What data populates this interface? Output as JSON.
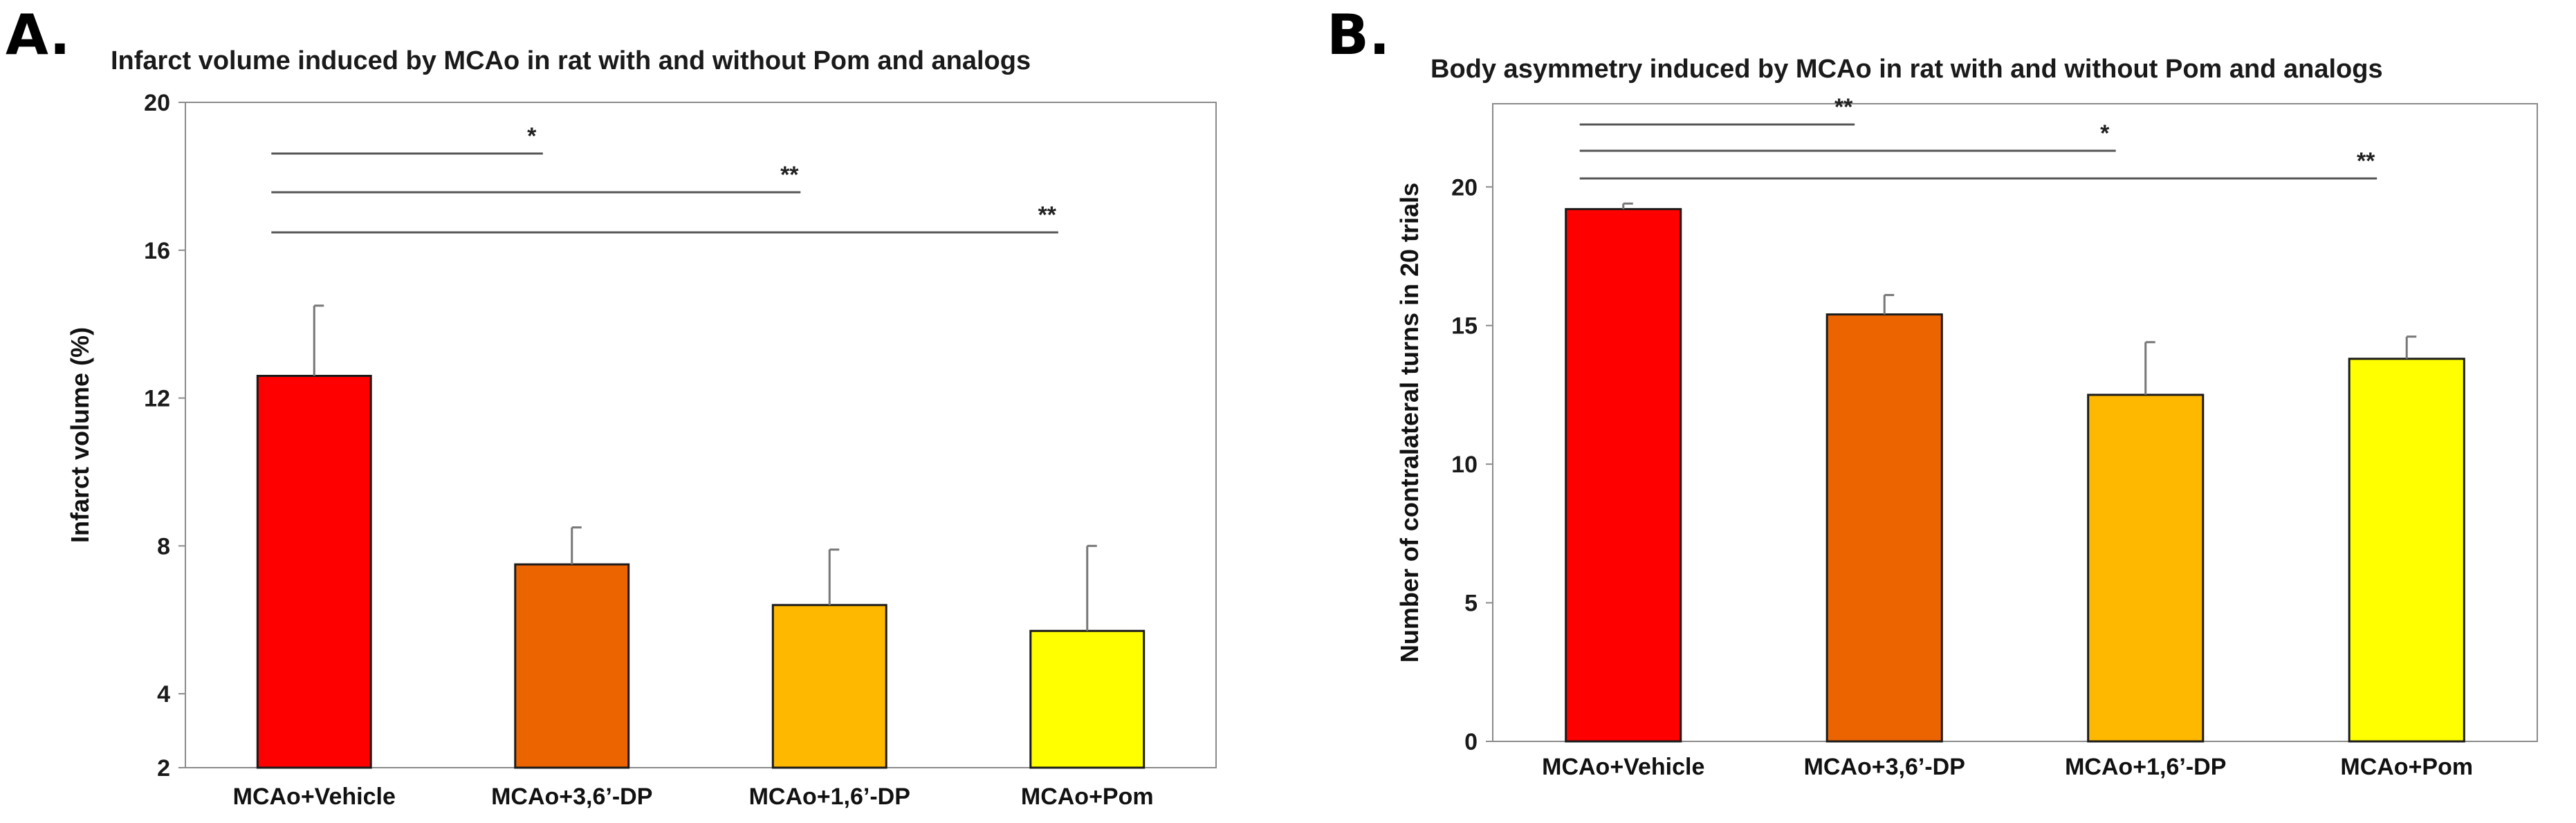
{
  "chart_data": [
    {
      "panel_label": "A.",
      "type": "bar",
      "title": "Infarct volume induced by MCAo in rat with and without Pom and analogs",
      "xlabel": "",
      "ylabel": "Infarct volume (%)",
      "ylim": [
        2,
        20
      ],
      "yticks": [
        2,
        4,
        8,
        12,
        16,
        20
      ],
      "categories": [
        "MCAo+Vehicle",
        "MCAo+3,6’-DP",
        "MCAo+1,6’-DP",
        "MCAo+Pom"
      ],
      "values": [
        12.6,
        7.5,
        6.4,
        5.7
      ],
      "errors": [
        1.9,
        1.0,
        1.5,
        2.3
      ],
      "colors": [
        "#ff0000",
        "#ec6400",
        "#ffb800",
        "#ffff00"
      ],
      "significance": [
        {
          "from": 0,
          "to": 1,
          "label": "*"
        },
        {
          "from": 0,
          "to": 2,
          "label": "**"
        },
        {
          "from": 0,
          "to": 3,
          "label": "**"
        }
      ]
    },
    {
      "panel_label": "B.",
      "type": "bar",
      "title": "Body asymmetry induced by MCAo in rat with and without Pom and analogs",
      "xlabel": "",
      "ylabel": "Number of contralateral turns in 20 trials",
      "ylim": [
        0,
        23
      ],
      "yticks": [
        0,
        5,
        10,
        15,
        20
      ],
      "categories": [
        "MCAo+Vehicle",
        "MCAo+3,6’-DP",
        "MCAo+1,6’-DP",
        "MCAo+Pom"
      ],
      "values": [
        19.2,
        15.4,
        12.5,
        13.8
      ],
      "errors": [
        0.2,
        0.7,
        1.9,
        0.8
      ],
      "colors": [
        "#ff0000",
        "#ec6400",
        "#ffb800",
        "#ffff00"
      ],
      "significance": [
        {
          "from": 0,
          "to": 1,
          "label": "**"
        },
        {
          "from": 0,
          "to": 2,
          "label": "*"
        },
        {
          "from": 0,
          "to": 3,
          "label": "**"
        }
      ]
    }
  ]
}
